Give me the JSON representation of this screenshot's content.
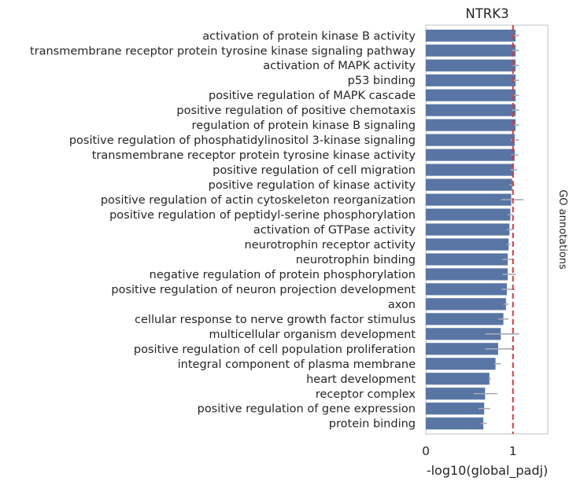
{
  "chart_data": {
    "type": "bar",
    "orientation": "horizontal",
    "title": "NTRK3",
    "xlabel": "-log10(global_padj)",
    "side_label": "GO annotations",
    "xlim": [
      0,
      1.4
    ],
    "xticks": [
      0,
      1
    ],
    "threshold": 1,
    "colors": {
      "bar": "#5875a4",
      "error": "#a9a9b6",
      "threshold": "#d03b3b",
      "axis": "#cccccc"
    },
    "categories": [
      "activation of protein kinase B activity",
      "transmembrane receptor protein tyrosine kinase signaling pathway",
      "activation of MAPK activity",
      "p53 binding",
      "positive regulation of MAPK cascade",
      "positive regulation of positive chemotaxis",
      "regulation of protein kinase B signaling",
      "positive regulation of phosphatidylinositol 3-kinase signaling",
      "transmembrane receptor protein tyrosine kinase activity",
      "positive regulation of cell migration",
      "positive regulation of kinase activity",
      "positive regulation of actin cytoskeleton reorganization",
      "positive regulation of peptidyl-serine phosphorylation",
      "activation of GTPase activity",
      "neurotrophin receptor activity",
      "neurotrophin binding",
      "negative regulation of protein phosphorylation",
      "positive regulation of neuron projection development",
      "axon",
      "cellular response to nerve growth factor stimulus",
      "multicellular organism development",
      "positive regulation of cell population proliferation",
      "integral component of plasma membrane",
      "heart development",
      "receptor complex",
      "positive regulation of gene expression",
      "protein binding"
    ],
    "values": [
      1.03,
      1.03,
      1.03,
      1.03,
      1.03,
      1.03,
      1.03,
      1.02,
      1.02,
      1.01,
      0.99,
      0.98,
      0.97,
      0.96,
      0.95,
      0.94,
      0.94,
      0.93,
      0.92,
      0.89,
      0.86,
      0.83,
      0.8,
      0.73,
      0.68,
      0.67,
      0.66
    ],
    "errors": [
      [
        0.99,
        1.07
      ],
      [
        0.99,
        1.07
      ],
      [
        0.99,
        1.07
      ],
      [
        0.99,
        1.07
      ],
      [
        0.99,
        1.07
      ],
      [
        0.99,
        1.07
      ],
      [
        0.99,
        1.07
      ],
      [
        0.97,
        1.07
      ],
      [
        0.98,
        1.06
      ],
      [
        0.97,
        1.05
      ],
      [
        0.96,
        1.02
      ],
      [
        0.86,
        1.12
      ],
      [
        0.94,
        1.0
      ],
      [
        0.93,
        0.99
      ],
      [
        0.93,
        0.97
      ],
      [
        0.88,
        1.0
      ],
      [
        0.88,
        1.03
      ],
      [
        0.87,
        1.02
      ],
      [
        0.89,
        0.95
      ],
      [
        0.83,
        0.95
      ],
      [
        0.68,
        1.07
      ],
      [
        0.68,
        0.99
      ],
      [
        0.78,
        0.86
      ],
      [
        0.72,
        0.75
      ],
      [
        0.55,
        0.82
      ],
      [
        0.6,
        0.74
      ],
      [
        0.63,
        0.7
      ]
    ]
  }
}
